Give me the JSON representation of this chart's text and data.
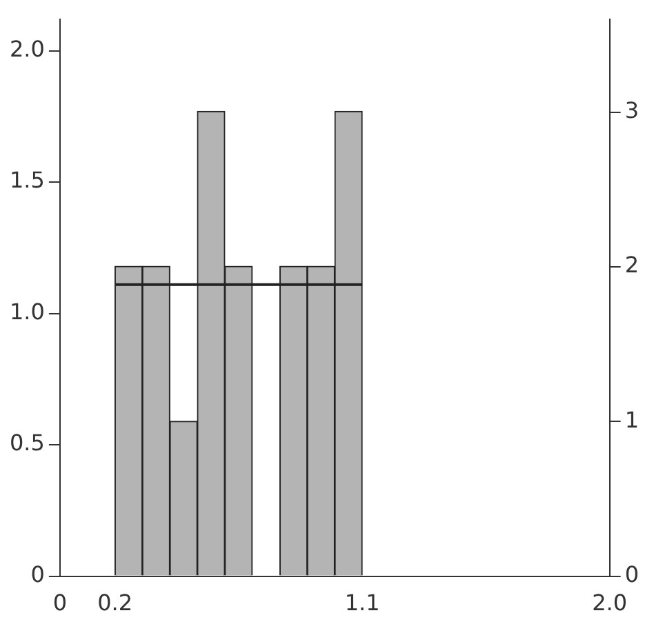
{
  "chart_data": {
    "type": "histogram",
    "bins": [
      0.2,
      0.3,
      0.4,
      0.5,
      0.6,
      0.7,
      0.8,
      0.9,
      1.0,
      1.1
    ],
    "series": [
      {
        "values": [
          1.18,
          1.18,
          0.59,
          1.77,
          1.18,
          0,
          1.18,
          1.18,
          1.77
        ],
        "color": "#b4b4b4"
      },
      {
        "type": "line",
        "x": [
          0.2,
          1.1
        ],
        "values": [
          1.11,
          1.11
        ],
        "color": "#222222"
      }
    ],
    "xlim": [
      0,
      2.0
    ],
    "xticks": [
      0,
      0.2,
      1.1,
      {
        "value": 2.0,
        "label": "2.0"
      }
    ],
    "ylim": [
      0,
      2.12
    ],
    "yticks": [
      0,
      0.5,
      {
        "value": 1.0,
        "label": "1.0"
      },
      1.5,
      {
        "value": 2.0,
        "label": "2.0"
      }
    ],
    "y2lim": [
      0,
      3.6
    ],
    "y2ticks": [
      0,
      1,
      2,
      3
    ],
    "grid": false,
    "legend": false
  }
}
